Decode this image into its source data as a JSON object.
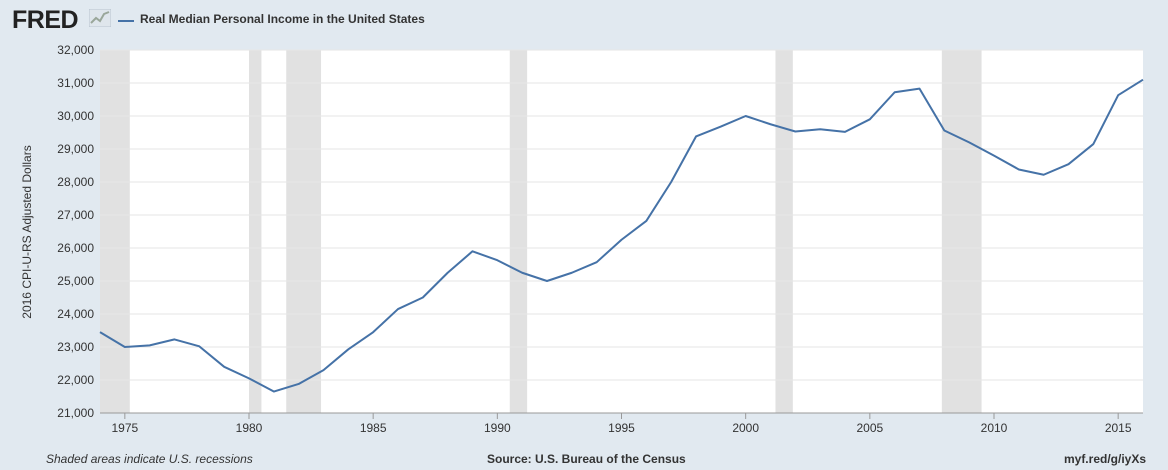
{
  "brand": {
    "logo_text": "FRED"
  },
  "chart_data": {
    "type": "line",
    "title": "",
    "ylabel": "2016 CPI-U-RS Adjusted Dollars",
    "xlabel": "",
    "xlim": [
      1974,
      2016
    ],
    "ylim": [
      21000,
      32000
    ],
    "x_ticks": [
      "1975",
      "1980",
      "1985",
      "1990",
      "1995",
      "2000",
      "2005",
      "2010",
      "2015"
    ],
    "y_ticks": [
      "21,000",
      "22,000",
      "23,000",
      "24,000",
      "25,000",
      "26,000",
      "27,000",
      "28,000",
      "29,000",
      "30,000",
      "31,000",
      "32,000"
    ],
    "grid": true,
    "legend_position": "top-left",
    "series": [
      {
        "name": "Real Median Personal Income in the United States",
        "color": "#4572a7",
        "x": [
          1974,
          1975,
          1976,
          1977,
          1978,
          1979,
          1980,
          1981,
          1982,
          1983,
          1984,
          1985,
          1986,
          1987,
          1988,
          1989,
          1990,
          1991,
          1992,
          1993,
          1994,
          1995,
          1996,
          1997,
          1998,
          1999,
          2000,
          2001,
          2002,
          2003,
          2004,
          2005,
          2006,
          2007,
          2008,
          2009,
          2010,
          2011,
          2012,
          2013,
          2014,
          2015,
          2016
        ],
        "values": [
          23450,
          23000,
          23050,
          23230,
          23020,
          22400,
          22050,
          21650,
          21880,
          22300,
          22930,
          23450,
          24150,
          24500,
          25250,
          25900,
          25630,
          25250,
          25000,
          25250,
          25570,
          26250,
          26820,
          28000,
          29380,
          29680,
          30000,
          29750,
          29530,
          29600,
          29520,
          29900,
          30720,
          30830,
          29560,
          29200,
          28800,
          28380,
          28220,
          28540,
          29150,
          30630,
          31100
        ]
      }
    ],
    "recessions": [
      [
        1973.9,
        1975.2
      ],
      [
        1980.0,
        1980.5
      ],
      [
        1981.5,
        1982.9
      ],
      [
        1990.5,
        1991.2
      ],
      [
        2001.2,
        2001.9
      ],
      [
        2007.9,
        2009.5
      ]
    ],
    "recession_color": "#e1e1e1",
    "plot_background": "#ffffff",
    "grid_color": "#e6e6e6"
  },
  "footer": {
    "note": "Shaded areas indicate U.S. recessions",
    "source": "Source: U.S. Bureau of the Census",
    "link": "myf.red/g/iyXs"
  }
}
